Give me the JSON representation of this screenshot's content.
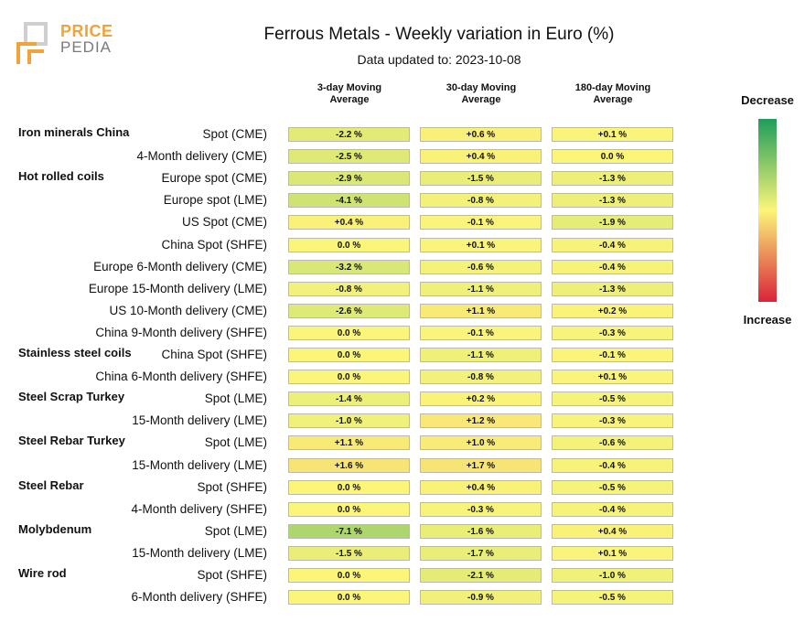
{
  "logo": {
    "line1": "PRICE",
    "line2": "PEDIA"
  },
  "title": "Ferrous Metals - Weekly variation in Euro (%)",
  "subtitle": "Data updated to: 2023-10-08",
  "columns": [
    "3-day Moving Average",
    "30-day Moving Average",
    "180-day Moving Average"
  ],
  "columns_lines": [
    [
      "3-day Moving",
      "Average"
    ],
    [
      "30-day Moving",
      "Average"
    ],
    [
      "180-day Moving",
      "Average"
    ]
  ],
  "legend": {
    "top": "Decrease",
    "bottom": "Increase"
  },
  "colors": {
    "decrease": "#1e9d5a",
    "neutral": "#fbf57a",
    "increase": "#d9243a",
    "cell_border": "#b9b9b9"
  },
  "chart_data": {
    "type": "heatmap",
    "title": "Ferrous Metals - Weekly variation in Euro (%)",
    "columns": [
      "3-day Moving Average",
      "30-day Moving Average",
      "180-day Moving Average"
    ],
    "rows": [
      {
        "group": "Iron minerals China",
        "label": "Spot (CME)",
        "values": [
          -2.2,
          0.6,
          0.1
        ],
        "texts": [
          "-2.2 %",
          "+0.6 %",
          "+0.1 %"
        ]
      },
      {
        "group": "",
        "label": "4-Month delivery (CME)",
        "values": [
          -2.5,
          0.4,
          0.0
        ],
        "texts": [
          "-2.5 %",
          "+0.4 %",
          "0.0 %"
        ]
      },
      {
        "group": "Hot rolled coils",
        "label": "Europe spot (CME)",
        "values": [
          -2.9,
          -1.5,
          -1.3
        ],
        "texts": [
          "-2.9 %",
          "-1.5 %",
          "-1.3 %"
        ]
      },
      {
        "group": "",
        "label": "Europe spot (LME)",
        "values": [
          -4.1,
          -0.8,
          -1.3
        ],
        "texts": [
          "-4.1 %",
          "-0.8 %",
          "-1.3 %"
        ]
      },
      {
        "group": "",
        "label": "US Spot (CME)",
        "values": [
          0.4,
          -0.1,
          -1.9
        ],
        "texts": [
          "+0.4 %",
          "-0.1 %",
          "-1.9 %"
        ]
      },
      {
        "group": "",
        "label": "China Spot (SHFE)",
        "values": [
          0.0,
          0.1,
          -0.4
        ],
        "texts": [
          "0.0 %",
          "+0.1 %",
          "-0.4 %"
        ]
      },
      {
        "group": "",
        "label": "Europe 6-Month delivery (CME)",
        "values": [
          -3.2,
          -0.6,
          -0.4
        ],
        "texts": [
          "-3.2 %",
          "-0.6 %",
          "-0.4 %"
        ]
      },
      {
        "group": "",
        "label": "Europe 15-Month delivery (LME)",
        "values": [
          -0.8,
          -1.1,
          -1.3
        ],
        "texts": [
          "-0.8 %",
          "-1.1 %",
          "-1.3 %"
        ]
      },
      {
        "group": "",
        "label": "US 10-Month delivery (CME)",
        "values": [
          -2.6,
          1.1,
          0.2
        ],
        "texts": [
          "-2.6 %",
          "+1.1 %",
          "+0.2 %"
        ]
      },
      {
        "group": "",
        "label": "China 9-Month delivery (SHFE)",
        "values": [
          0.0,
          -0.1,
          -0.3
        ],
        "texts": [
          "0.0 %",
          "-0.1 %",
          "-0.3 %"
        ]
      },
      {
        "group": "Stainless steel coils",
        "label": "China Spot (SHFE)",
        "values": [
          0.0,
          -1.1,
          -0.1
        ],
        "texts": [
          "0.0 %",
          "-1.1 %",
          "-0.1 %"
        ]
      },
      {
        "group": "",
        "label": "China 6-Month delivery (SHFE)",
        "values": [
          0.0,
          -0.8,
          0.1
        ],
        "texts": [
          "0.0 %",
          "-0.8 %",
          "+0.1 %"
        ]
      },
      {
        "group": "Steel Scrap Turkey",
        "label": "Spot (LME)",
        "values": [
          -1.4,
          0.2,
          -0.5
        ],
        "texts": [
          "-1.4 %",
          "+0.2 %",
          "-0.5 %"
        ]
      },
      {
        "group": "",
        "label": "15-Month delivery (LME)",
        "values": [
          -1.0,
          1.2,
          -0.3
        ],
        "texts": [
          "-1.0 %",
          "+1.2 %",
          "-0.3 %"
        ]
      },
      {
        "group": "Steel Rebar Turkey",
        "label": "Spot (LME)",
        "values": [
          1.1,
          1.0,
          -0.6
        ],
        "texts": [
          "+1.1 %",
          "+1.0 %",
          "-0.6 %"
        ]
      },
      {
        "group": "",
        "label": "15-Month delivery (LME)",
        "values": [
          1.6,
          1.7,
          -0.4
        ],
        "texts": [
          "+1.6 %",
          "+1.7 %",
          "-0.4 %"
        ]
      },
      {
        "group": "Steel Rebar",
        "label": "Spot (SHFE)",
        "values": [
          0.0,
          0.4,
          -0.5
        ],
        "texts": [
          "0.0 %",
          "+0.4 %",
          "-0.5 %"
        ]
      },
      {
        "group": "",
        "label": "4-Month delivery (SHFE)",
        "values": [
          0.0,
          -0.3,
          -0.4
        ],
        "texts": [
          "0.0 %",
          "-0.3 %",
          "-0.4 %"
        ]
      },
      {
        "group": "Molybdenum",
        "label": "Spot (LME)",
        "values": [
          -7.1,
          -1.6,
          0.4
        ],
        "texts": [
          "-7.1 %",
          "-1.6 %",
          "+0.4 %"
        ]
      },
      {
        "group": "",
        "label": "15-Month delivery (LME)",
        "values": [
          -1.5,
          -1.7,
          0.1
        ],
        "texts": [
          "-1.5 %",
          "-1.7 %",
          "+0.1 %"
        ]
      },
      {
        "group": "Wire rod",
        "label": "Spot (SHFE)",
        "values": [
          0.0,
          -2.1,
          -1.0
        ],
        "texts": [
          "0.0 %",
          "-2.1 %",
          "-1.0 %"
        ]
      },
      {
        "group": "",
        "label": "6-Month delivery (SHFE)",
        "values": [
          0.0,
          -0.9,
          -0.5
        ],
        "texts": [
          "0.0 %",
          "-0.9 %",
          "-0.5 %"
        ]
      }
    ],
    "color_scale": {
      "min": -20,
      "max": 20,
      "low_color": "#1e9d5a",
      "mid_color": "#fbf57a",
      "high_color": "#d9243a"
    },
    "legend": {
      "top": "Decrease",
      "bottom": "Increase"
    }
  }
}
